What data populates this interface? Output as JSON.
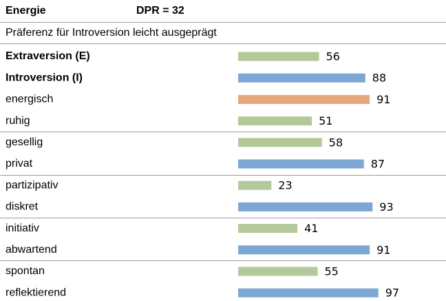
{
  "header": {
    "title": "Energie",
    "score": "DPR = 32"
  },
  "subtitle": "Präferenz für Introversion leicht ausgeprägt",
  "groups": [
    [
      {
        "label": "Extraversion (E)",
        "value": 56,
        "color": "#b3c99a",
        "bold": true
      },
      {
        "label": "Introversion (I)",
        "value": 88,
        "color": "#7ea8d3",
        "bold": true
      },
      {
        "label": "energisch",
        "value": 91,
        "color": "#e6a67c",
        "bold": false
      },
      {
        "label": "ruhig",
        "value": 51,
        "color": "#b3c99a",
        "bold": false
      }
    ],
    [
      {
        "label": "gesellig",
        "value": 58,
        "color": "#b3c99a",
        "bold": false
      },
      {
        "label": "privat",
        "value": 87,
        "color": "#7ea8d3",
        "bold": false
      }
    ],
    [
      {
        "label": "partizipativ",
        "value": 23,
        "color": "#b3c99a",
        "bold": false
      },
      {
        "label": "diskret",
        "value": 93,
        "color": "#7ea8d3",
        "bold": false
      }
    ],
    [
      {
        "label": "initiativ",
        "value": 41,
        "color": "#b3c99a",
        "bold": false
      },
      {
        "label": "abwartend",
        "value": 91,
        "color": "#7ea8d3",
        "bold": false
      }
    ],
    [
      {
        "label": "spontan",
        "value": 55,
        "color": "#b3c99a",
        "bold": false
      },
      {
        "label": "reflektierend",
        "value": 97,
        "color": "#7ea8d3",
        "bold": false
      }
    ]
  ]
}
